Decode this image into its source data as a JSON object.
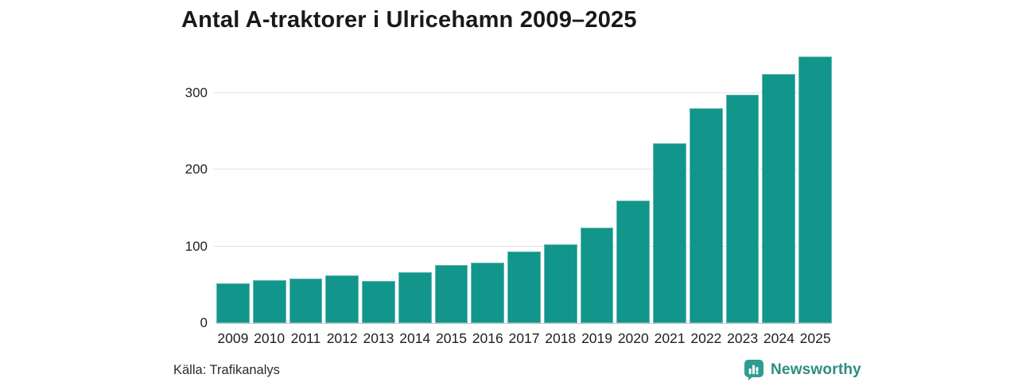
{
  "chart_data": {
    "type": "bar",
    "title": "Antal A-traktorer i Ulricehamn 2009–2025",
    "categories": [
      "2009",
      "2010",
      "2011",
      "2012",
      "2013",
      "2014",
      "2015",
      "2016",
      "2017",
      "2018",
      "2019",
      "2020",
      "2021",
      "2022",
      "2023",
      "2024",
      "2025"
    ],
    "values": [
      52,
      56,
      58,
      62,
      55,
      67,
      76,
      79,
      93,
      103,
      125,
      160,
      235,
      280,
      298,
      325,
      348
    ],
    "xlabel": "",
    "ylabel": "",
    "ylim": [
      0,
      350
    ],
    "yticks": [
      0,
      100,
      200,
      300
    ],
    "grid": true,
    "legend": false,
    "bar_color": "#12958b",
    "gridline_color": "#e4e4e4",
    "axis_color": "#c9c9c9",
    "title_color": "#191919"
  },
  "source": {
    "label": "Källa: Trafikanalys"
  },
  "brand": {
    "name": "Newsworthy",
    "text_color": "#2c8c84",
    "icon": "newsworthy-speech-bubble-bar-chart-icon",
    "icon_color": "#2e9c90"
  }
}
